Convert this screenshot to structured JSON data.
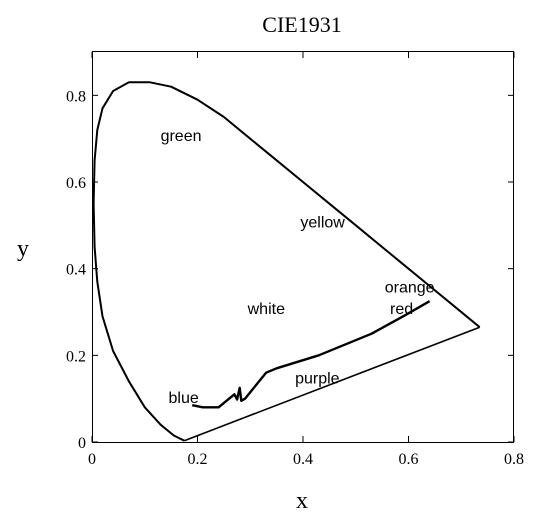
{
  "chart_data": {
    "type": "line",
    "title": "CIE1931",
    "xlabel": "x",
    "ylabel": "y",
    "xlim": [
      0,
      0.8
    ],
    "ylim": [
      0,
      0.9
    ],
    "x_ticks": [
      {
        "value": 0,
        "label": "0"
      },
      {
        "value": 0.2,
        "label": "0.2"
      },
      {
        "value": 0.4,
        "label": "0.4"
      },
      {
        "value": 0.6,
        "label": "0.6"
      },
      {
        "value": 0.8,
        "label": "0.8"
      }
    ],
    "y_ticks": [
      {
        "value": 0,
        "label": "0"
      },
      {
        "value": 0.2,
        "label": "0.2"
      },
      {
        "value": 0.4,
        "label": "0.4"
      },
      {
        "value": 0.6,
        "label": "0.6"
      },
      {
        "value": 0.8,
        "label": "0.8"
      }
    ],
    "grid": false,
    "series": [
      {
        "role": "spectral-locus",
        "points": [
          [
            0.735,
            0.265
          ],
          [
            0.69,
            0.31
          ],
          [
            0.64,
            0.36
          ],
          [
            0.59,
            0.41
          ],
          [
            0.55,
            0.45
          ],
          [
            0.5,
            0.5
          ],
          [
            0.45,
            0.55
          ],
          [
            0.4,
            0.6
          ],
          [
            0.35,
            0.65
          ],
          [
            0.3,
            0.7
          ],
          [
            0.25,
            0.75
          ],
          [
            0.2,
            0.79
          ],
          [
            0.15,
            0.82
          ],
          [
            0.11,
            0.83
          ],
          [
            0.07,
            0.83
          ],
          [
            0.04,
            0.81
          ],
          [
            0.02,
            0.77
          ],
          [
            0.01,
            0.72
          ],
          [
            0.005,
            0.65
          ],
          [
            0.003,
            0.55
          ],
          [
            0.005,
            0.45
          ],
          [
            0.01,
            0.37
          ],
          [
            0.02,
            0.29
          ],
          [
            0.04,
            0.21
          ],
          [
            0.07,
            0.14
          ],
          [
            0.1,
            0.08
          ],
          [
            0.13,
            0.04
          ],
          [
            0.155,
            0.015
          ],
          [
            0.175,
            0.003
          ]
        ]
      },
      {
        "role": "line-of-purples",
        "points": [
          [
            0.175,
            0.003
          ],
          [
            0.735,
            0.265
          ]
        ]
      },
      {
        "role": "planckian-locus",
        "points": [
          [
            0.19,
            0.085
          ],
          [
            0.21,
            0.08
          ],
          [
            0.24,
            0.08
          ],
          [
            0.255,
            0.095
          ],
          [
            0.27,
            0.11
          ],
          [
            0.275,
            0.098
          ],
          [
            0.28,
            0.125
          ],
          [
            0.283,
            0.095
          ],
          [
            0.29,
            0.1
          ],
          [
            0.31,
            0.13
          ],
          [
            0.33,
            0.16
          ],
          [
            0.35,
            0.17
          ],
          [
            0.43,
            0.2
          ],
          [
            0.53,
            0.25
          ],
          [
            0.59,
            0.29
          ],
          [
            0.64,
            0.325
          ]
        ]
      }
    ],
    "annotations": [
      {
        "text": "green",
        "x": 0.13,
        "y": 0.695
      },
      {
        "text": "yellow",
        "x": 0.395,
        "y": 0.495
      },
      {
        "text": "orange",
        "x": 0.555,
        "y": 0.345
      },
      {
        "text": "red",
        "x": 0.565,
        "y": 0.295
      },
      {
        "text": "white",
        "x": 0.295,
        "y": 0.295
      },
      {
        "text": "blue",
        "x": 0.145,
        "y": 0.09
      },
      {
        "text": "purple",
        "x": 0.385,
        "y": 0.135
      }
    ]
  }
}
